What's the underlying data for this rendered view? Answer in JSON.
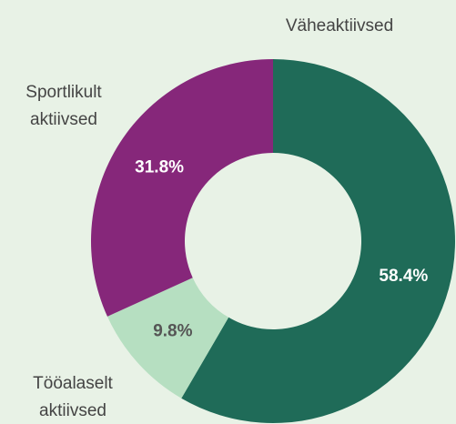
{
  "chart_data": {
    "type": "donut",
    "categories": [
      "Väheaktiivsed",
      "Tööalaselt aktiivsed",
      "Sportlikult aktiivsed"
    ],
    "values": [
      58.4,
      9.8,
      31.8
    ],
    "value_labels": [
      "58.4%",
      "9.8%",
      "31.8%"
    ],
    "colors": [
      "#1f6b58",
      "#b6dfc1",
      "#86277a"
    ],
    "label_colors": [
      "#ffffff",
      "#555555",
      "#ffffff"
    ]
  }
}
